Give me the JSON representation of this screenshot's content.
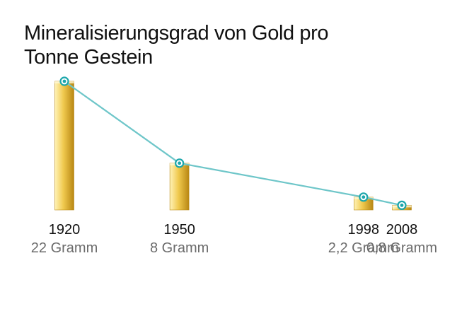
{
  "chart_data": {
    "type": "bar",
    "title": [
      "Mineralisierungsgrad von Gold pro",
      "Tonne Gestein"
    ],
    "categories": [
      "1920",
      "1950",
      "1998",
      "2008"
    ],
    "x": [
      1920,
      1950,
      1998,
      2008
    ],
    "values": [
      22,
      8,
      2.2,
      0.8
    ],
    "value_labels": [
      "22 Gramm",
      "8 Gramm",
      "2,2 Gramm",
      "0,8 Gramm"
    ],
    "unit": "Gramm",
    "overlay": "line",
    "ylim": [
      0,
      22
    ],
    "grid": false,
    "colors": {
      "bar_light": "#fff3b8",
      "bar_mid": "#f0c94e",
      "bar_dark": "#b88713",
      "line": "#6ec6c9",
      "marker": "#1ba6ab"
    }
  }
}
